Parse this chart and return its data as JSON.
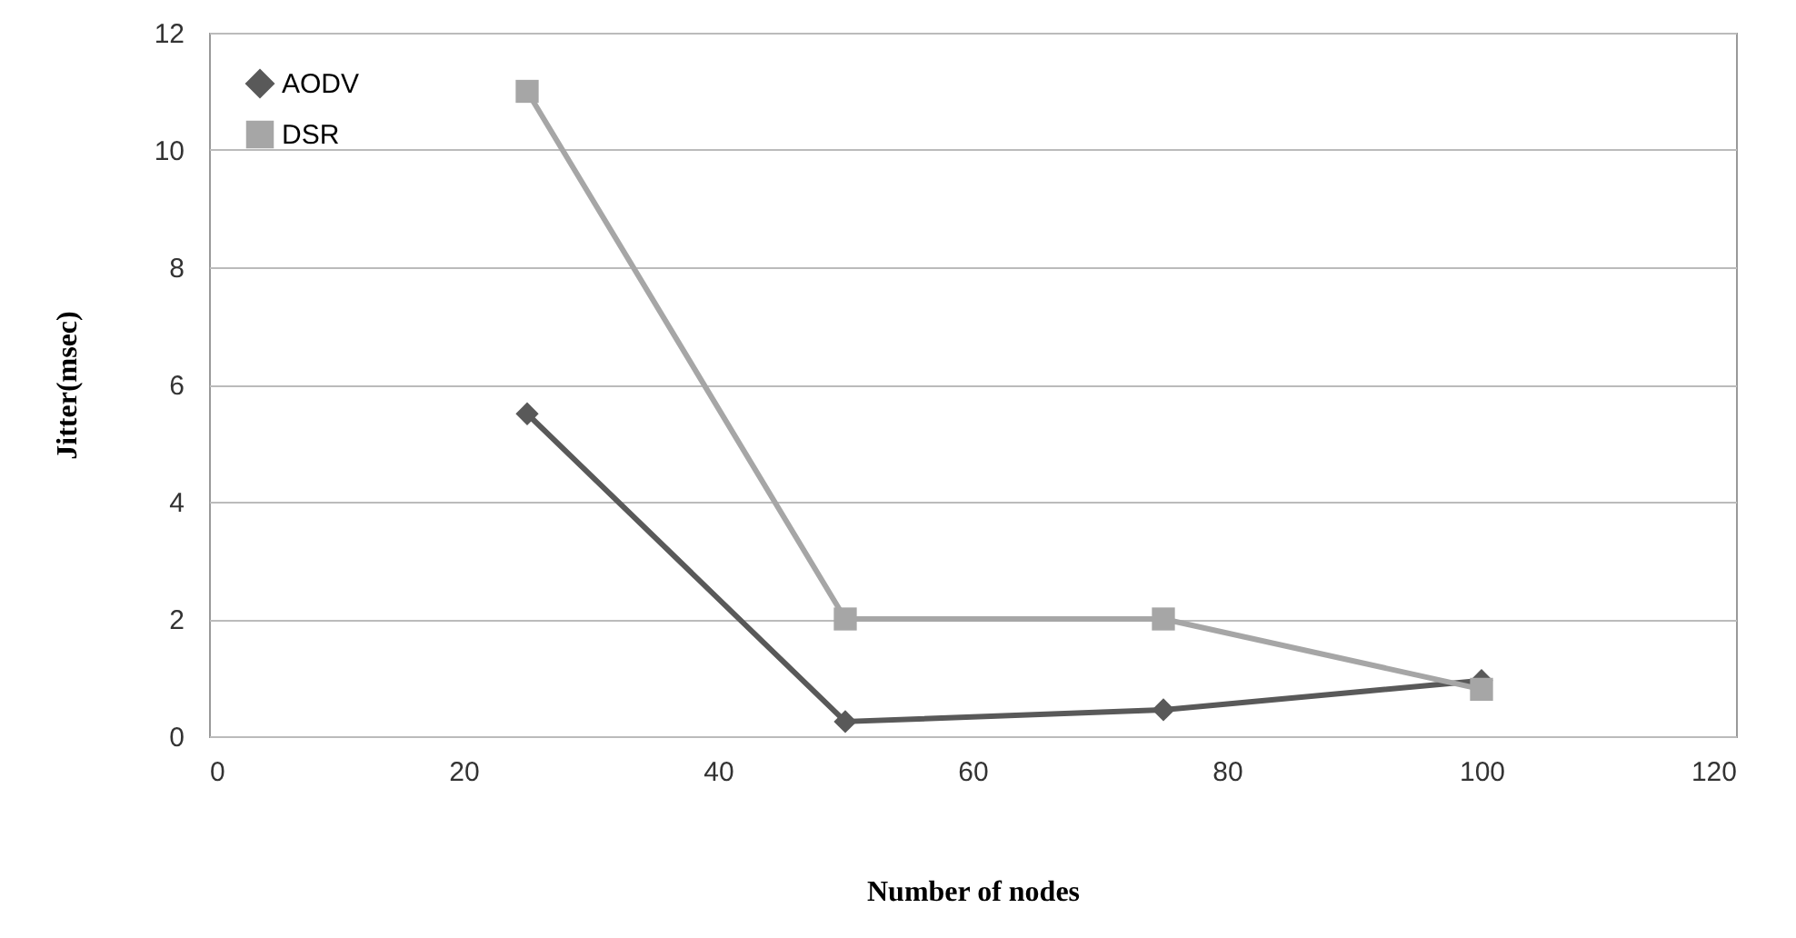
{
  "chart_data": {
    "type": "line",
    "xlabel": "Number of nodes",
    "ylabel": "Jitter(msec)",
    "x": [
      25,
      50,
      75,
      100
    ],
    "series": [
      {
        "name": "AODV",
        "color": "#595959",
        "marker": "diamond",
        "values": [
          5.5,
          0.25,
          0.45,
          0.95
        ]
      },
      {
        "name": "DSR",
        "color": "#a6a6a6",
        "marker": "square",
        "values": [
          11,
          2,
          2,
          0.8
        ]
      }
    ],
    "xlim": [
      0,
      120
    ],
    "xticks": [
      0,
      20,
      40,
      60,
      80,
      100,
      120
    ],
    "ylim": [
      0,
      12
    ],
    "yticks": [
      0,
      2,
      4,
      6,
      8,
      10,
      12
    ],
    "grid": "y",
    "legend": "top left",
    "line_style": "solid"
  }
}
